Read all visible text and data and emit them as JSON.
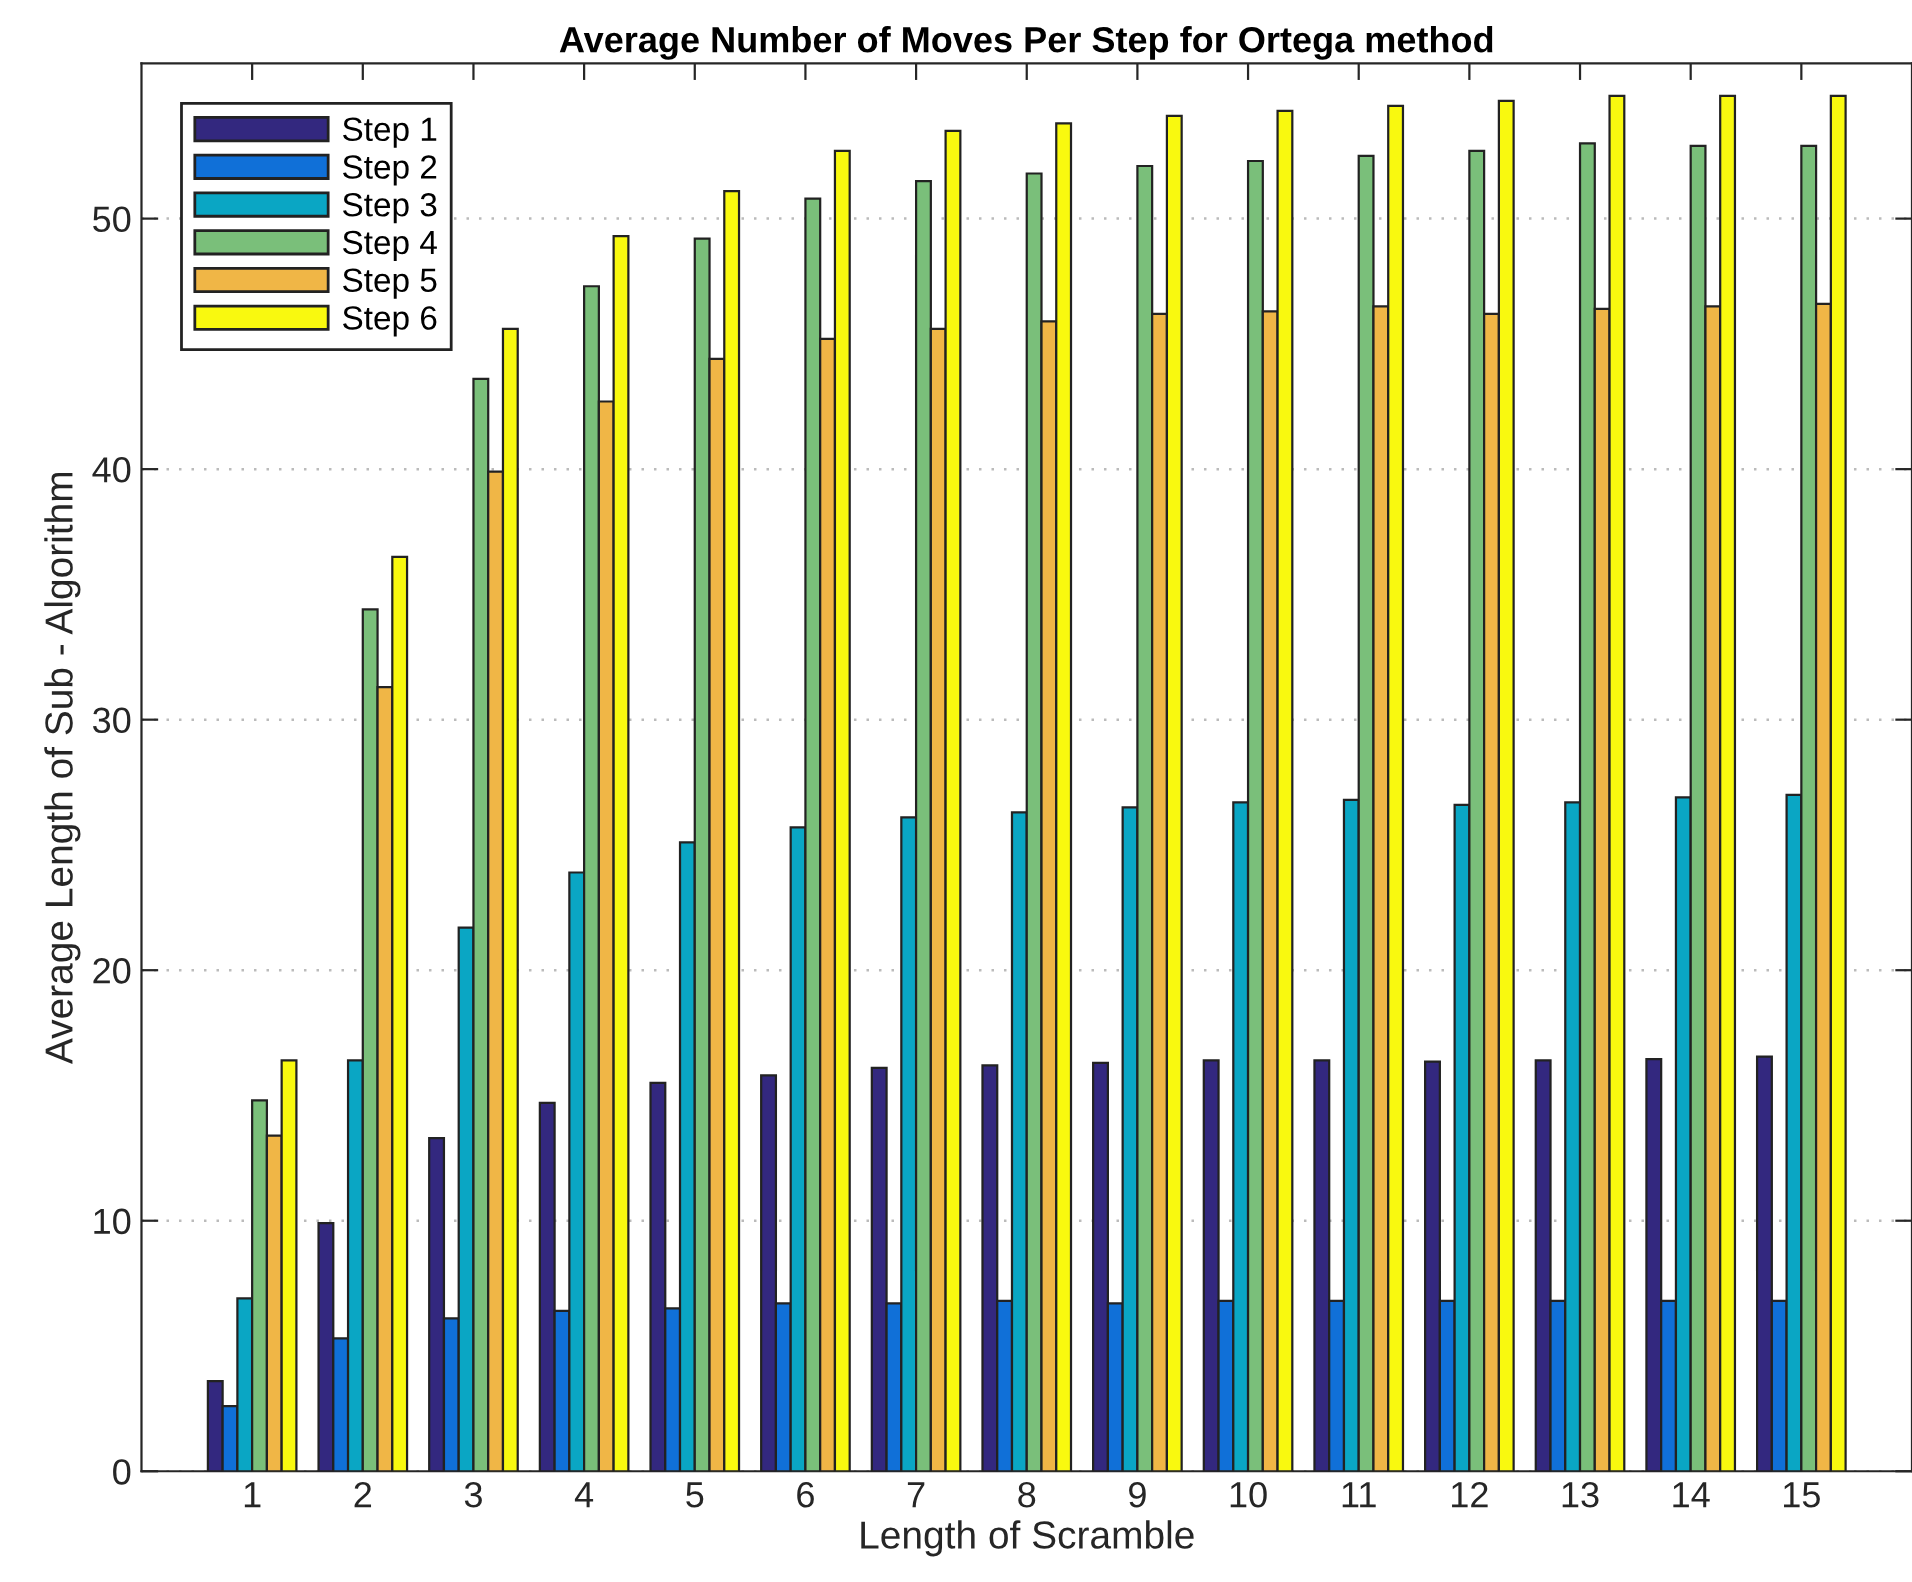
{
  "chart_data": {
    "type": "bar",
    "title": "Average Number of Moves Per Step for Ortega method",
    "xlabel": "Length of Scramble",
    "ylabel": "Average Length of Sub - Algorithm",
    "categories": [
      "1",
      "2",
      "3",
      "4",
      "5",
      "6",
      "7",
      "8",
      "9",
      "10",
      "11",
      "12",
      "13",
      "14",
      "15"
    ],
    "series": [
      {
        "name": "Step 1",
        "color": "#33287f",
        "values": [
          3.6,
          9.9,
          13.3,
          14.7,
          15.5,
          15.8,
          16.1,
          16.2,
          16.3,
          16.4,
          16.4,
          16.35,
          16.4,
          16.45,
          16.55
        ]
      },
      {
        "name": "Step 2",
        "color": "#1070d8",
        "values": [
          2.6,
          5.3,
          6.1,
          6.4,
          6.5,
          6.7,
          6.7,
          6.8,
          6.7,
          6.8,
          6.8,
          6.8,
          6.8,
          6.8,
          6.8
        ]
      },
      {
        "name": "Step 3",
        "color": "#0aa6c4",
        "values": [
          6.9,
          16.4,
          21.7,
          23.9,
          25.1,
          25.7,
          26.1,
          26.3,
          26.5,
          26.7,
          26.8,
          26.6,
          26.7,
          26.9,
          27.0
        ]
      },
      {
        "name": "Step 4",
        "color": "#7abf7a",
        "values": [
          14.8,
          34.4,
          43.6,
          47.3,
          49.2,
          50.8,
          51.5,
          51.8,
          52.1,
          52.3,
          52.5,
          52.7,
          53.0,
          52.9,
          52.9
        ]
      },
      {
        "name": "Step 5",
        "color": "#f0b646",
        "values": [
          13.4,
          31.3,
          39.9,
          42.7,
          44.4,
          45.2,
          45.6,
          45.9,
          46.2,
          46.3,
          46.5,
          46.2,
          46.4,
          46.5,
          46.6
        ]
      },
      {
        "name": "Step 6",
        "color": "#f9f90f",
        "values": [
          16.4,
          36.5,
          45.6,
          49.3,
          51.1,
          52.7,
          53.5,
          53.8,
          54.1,
          54.3,
          54.5,
          54.7,
          54.9,
          54.9,
          54.9
        ]
      }
    ],
    "ylim": [
      0,
      56.2
    ],
    "yticks": [
      0,
      10,
      20,
      30,
      40,
      50
    ],
    "grid": "y",
    "legend": "top left"
  }
}
